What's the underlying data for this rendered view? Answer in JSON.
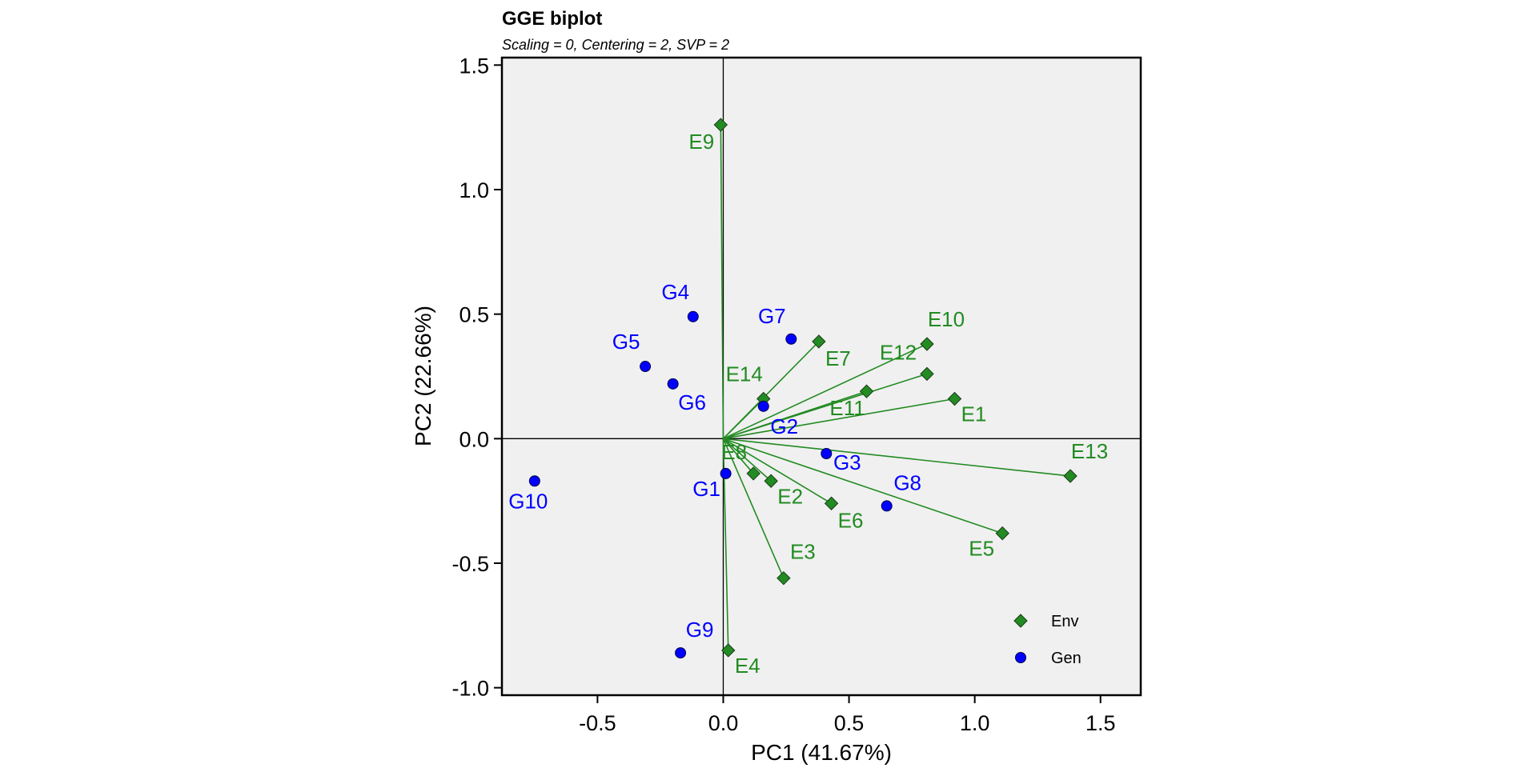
{
  "chart_data": {
    "type": "scatter",
    "title": "GGE biplot",
    "subtitle": "Scaling = 0, Centering = 2, SVP = 2",
    "xlabel": "PC1 (41.67%)",
    "ylabel": "PC2 (22.66%)",
    "xlim": [
      -0.88,
      1.66
    ],
    "ylim": [
      -1.03,
      1.53
    ],
    "xticks": [
      -0.5,
      0.0,
      0.5,
      1.0,
      1.5
    ],
    "xtick_labels": [
      "-0.5",
      "0.0",
      "0.5",
      "1.0",
      "1.5"
    ],
    "yticks": [
      -1.0,
      -0.5,
      0.0,
      0.5,
      1.0,
      1.5
    ],
    "ytick_labels": [
      "-1.0",
      "-0.5",
      "0.0",
      "0.5",
      "1.0",
      "1.5"
    ],
    "grid": false,
    "background": "#f0f0f0",
    "legend_position": "bottom-right",
    "series": [
      {
        "name": "Env",
        "color": "#228b22",
        "marker": "diamond",
        "vectors_from_origin": true,
        "points": [
          {
            "label": "E1",
            "x": 0.92,
            "y": 0.16
          },
          {
            "label": "E2",
            "x": 0.19,
            "y": -0.17
          },
          {
            "label": "E3",
            "x": 0.24,
            "y": -0.56
          },
          {
            "label": "E4",
            "x": 0.02,
            "y": -0.85
          },
          {
            "label": "E5",
            "x": 1.11,
            "y": -0.38
          },
          {
            "label": "E6",
            "x": 0.43,
            "y": -0.26
          },
          {
            "label": "E7",
            "x": 0.38,
            "y": 0.39
          },
          {
            "label": "E8",
            "x": 0.12,
            "y": -0.14
          },
          {
            "label": "E9",
            "x": -0.01,
            "y": 1.26
          },
          {
            "label": "E10",
            "x": 0.81,
            "y": 0.38
          },
          {
            "label": "E11",
            "x": 0.57,
            "y": 0.19
          },
          {
            "label": "E12",
            "x": 0.81,
            "y": 0.26
          },
          {
            "label": "E13",
            "x": 1.38,
            "y": -0.15
          },
          {
            "label": "E14",
            "x": 0.16,
            "y": 0.16
          }
        ]
      },
      {
        "name": "Gen",
        "color": "#0000ff",
        "marker": "circle",
        "points": [
          {
            "label": "G1",
            "x": 0.01,
            "y": -0.14
          },
          {
            "label": "G2",
            "x": 0.16,
            "y": 0.13
          },
          {
            "label": "G3",
            "x": 0.41,
            "y": -0.06
          },
          {
            "label": "G4",
            "x": -0.12,
            "y": 0.49
          },
          {
            "label": "G5",
            "x": -0.31,
            "y": 0.29
          },
          {
            "label": "G6",
            "x": -0.2,
            "y": 0.22
          },
          {
            "label": "G7",
            "x": 0.27,
            "y": 0.4
          },
          {
            "label": "G8",
            "x": 0.65,
            "y": -0.27
          },
          {
            "label": "G9",
            "x": -0.17,
            "y": -0.86
          },
          {
            "label": "G10",
            "x": -0.75,
            "y": -0.17
          }
        ]
      }
    ]
  }
}
